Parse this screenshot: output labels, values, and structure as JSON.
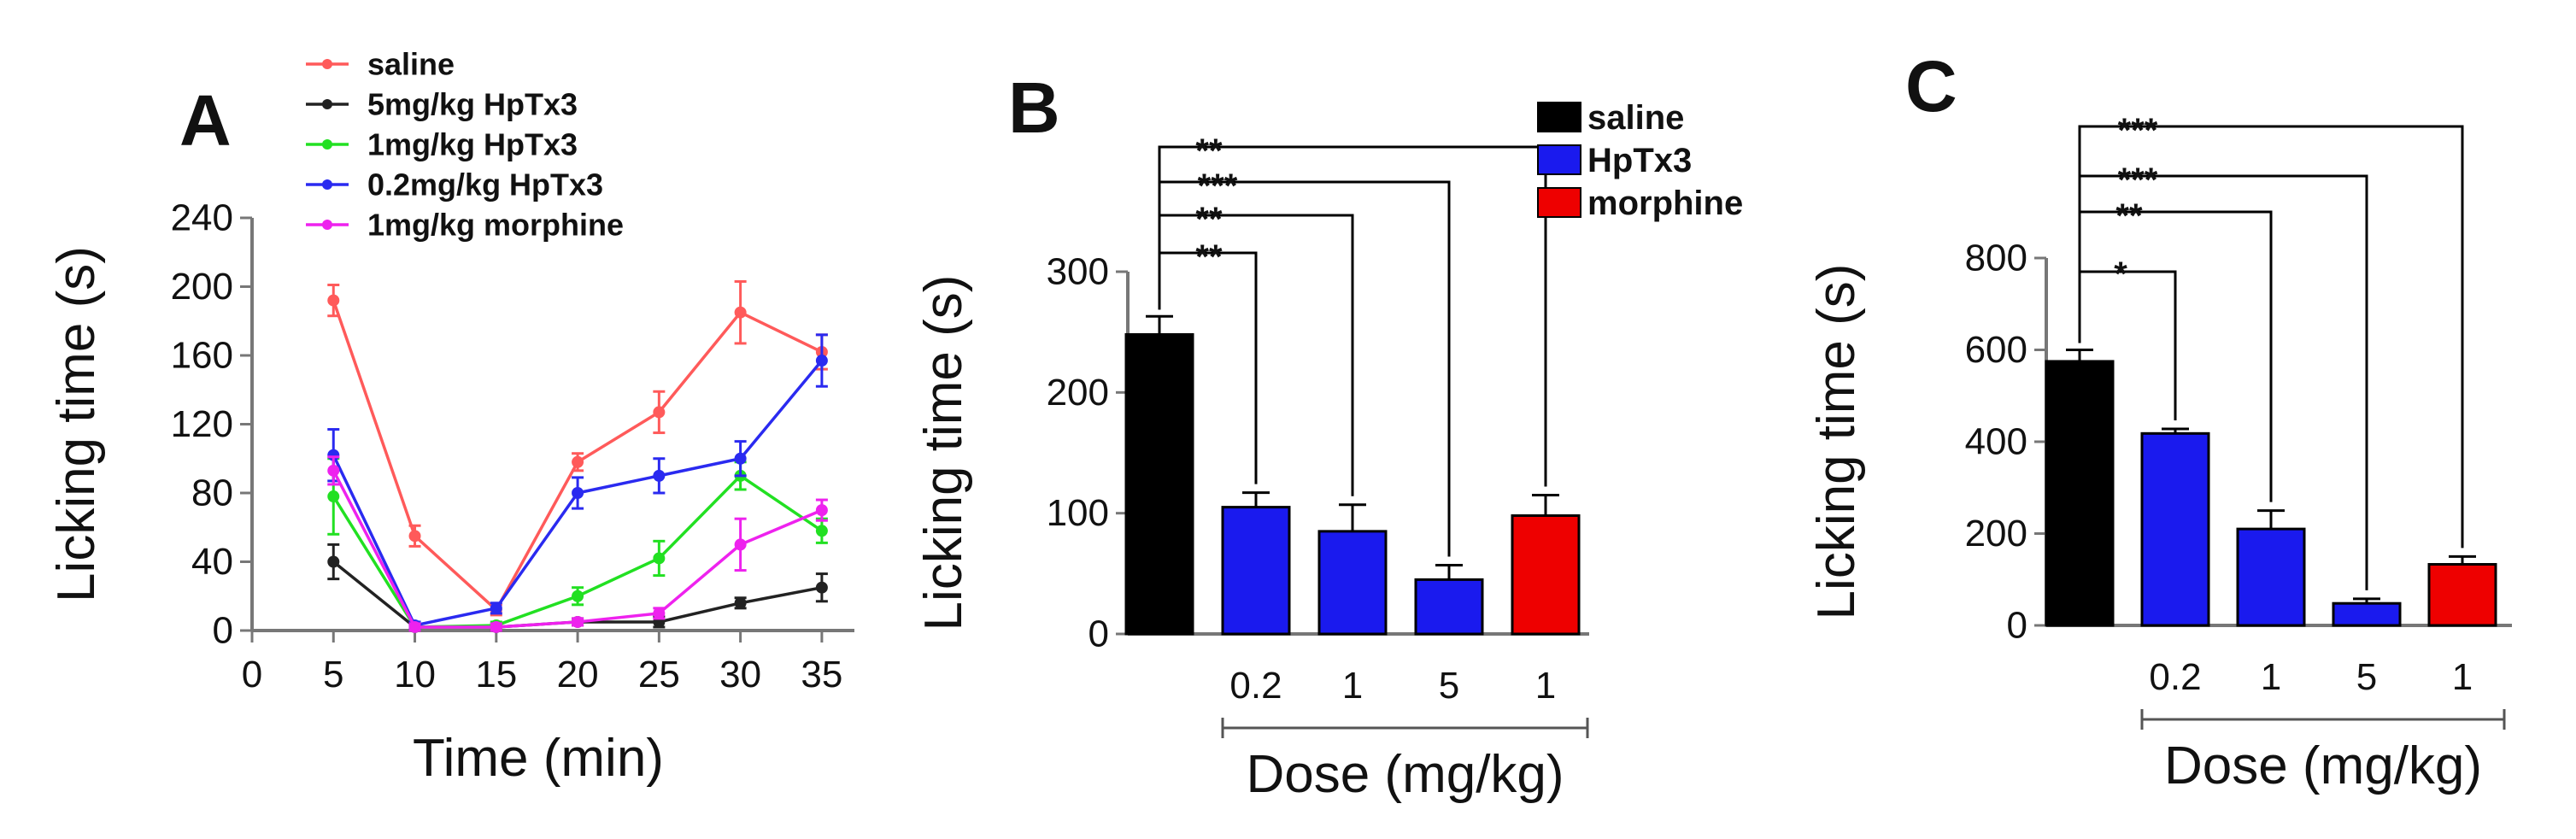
{
  "colors": {
    "saline": "#ff5a5a",
    "hptx3_5": "#222222",
    "hptx3_1": "#22e022",
    "hptx3_02": "#2a2af0",
    "morphine": "#ee22ee",
    "bar_saline": "#000000",
    "bar_hptx3": "#1a1aee",
    "bar_morphine": "#ee0000"
  },
  "chart_data": [
    {
      "panel": "A",
      "type": "line",
      "xlabel": "Time (min)",
      "ylabel": "Licking time (s)",
      "xlim": [
        0,
        37
      ],
      "ylim": [
        0,
        240
      ],
      "x_ticks": [
        "0",
        "5",
        "10",
        "15",
        "20",
        "25",
        "30",
        "35"
      ],
      "y_ticks": [
        "0",
        "40",
        "80",
        "120",
        "160",
        "200",
        "240"
      ],
      "x": [
        5,
        10,
        15,
        20,
        25,
        30,
        35
      ],
      "series": [
        {
          "name": "saline",
          "color_key": "saline",
          "values": [
            192,
            55,
            12,
            98,
            127,
            185,
            162
          ],
          "errors": [
            9,
            6,
            3,
            5,
            12,
            18,
            10
          ]
        },
        {
          "name": "5mg/kg HpTx3",
          "color_key": "hptx3_5",
          "values": [
            40,
            2,
            2,
            5,
            5,
            16,
            25
          ],
          "errors": [
            10,
            2,
            2,
            2,
            3,
            3,
            8
          ]
        },
        {
          "name": "1mg/kg HpTx3",
          "color_key": "hptx3_1",
          "values": [
            78,
            2,
            3,
            20,
            42,
            90,
            58
          ],
          "errors": [
            22,
            2,
            2,
            5,
            10,
            8,
            7
          ]
        },
        {
          "name": "0.2mg/kg HpTx3",
          "color_key": "hptx3_02",
          "values": [
            102,
            3,
            13,
            80,
            90,
            100,
            157
          ],
          "errors": [
            15,
            2,
            3,
            9,
            10,
            10,
            15
          ]
        },
        {
          "name": "1mg/kg morphine",
          "color_key": "morphine",
          "values": [
            93,
            2,
            2,
            5,
            10,
            50,
            70
          ],
          "errors": [
            8,
            2,
            2,
            2,
            3,
            15,
            6
          ]
        }
      ],
      "grid": false,
      "legend_position": "top"
    },
    {
      "panel": "B",
      "type": "bar",
      "ylabel": "Licking time (s)",
      "xlabel": "Dose (mg/kg)",
      "ylim": [
        0,
        300
      ],
      "y_ticks": [
        "0",
        "100",
        "200",
        "300"
      ],
      "categories": [
        "",
        "0.2",
        "1",
        "5",
        "1"
      ],
      "values": [
        248,
        105,
        85,
        45,
        98
      ],
      "errors": [
        15,
        12,
        22,
        12,
        17
      ],
      "bar_color_keys": [
        "bar_saline",
        "bar_hptx3",
        "bar_hptx3",
        "bar_hptx3",
        "bar_morphine"
      ],
      "legend": [
        {
          "name": "saline",
          "color_key": "bar_saline"
        },
        {
          "name": "HpTx3",
          "color_key": "bar_hptx3"
        },
        {
          "name": "morphine",
          "color_key": "bar_morphine"
        }
      ],
      "significance": [
        {
          "to": 1,
          "label": "**"
        },
        {
          "to": 2,
          "label": "**"
        },
        {
          "to": 3,
          "label": "***"
        },
        {
          "to": 4,
          "label": "**"
        }
      ],
      "grid": false,
      "legend_position": "top-right"
    },
    {
      "panel": "C",
      "type": "bar",
      "ylabel": "Licking time (s)",
      "xlabel": "Dose (mg/kg)",
      "ylim": [
        0,
        800
      ],
      "y_ticks": [
        "0",
        "200",
        "400",
        "600",
        "800"
      ],
      "categories": [
        "",
        "0.2",
        "1",
        "5",
        "1"
      ],
      "values": [
        575,
        418,
        210,
        48,
        133
      ],
      "errors": [
        25,
        10,
        40,
        10,
        17
      ],
      "bar_color_keys": [
        "bar_saline",
        "bar_hptx3",
        "bar_hptx3",
        "bar_hptx3",
        "bar_morphine"
      ],
      "significance": [
        {
          "to": 1,
          "label": "*"
        },
        {
          "to": 2,
          "label": "**"
        },
        {
          "to": 3,
          "label": "***"
        },
        {
          "to": 4,
          "label": "***"
        }
      ],
      "grid": false
    }
  ]
}
